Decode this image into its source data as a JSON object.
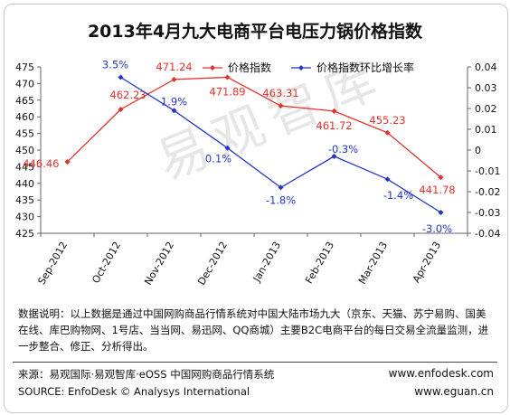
{
  "chart_data": {
    "type": "line",
    "title": "2013年4月九大电商平台电压力锅价格指数",
    "categories": [
      "Sep-2012",
      "Oct-2012",
      "Nov-2012",
      "Dec-2012",
      "Jan-2013",
      "Feb-2013",
      "Mar-2013",
      "Apr-2013"
    ],
    "y_left": {
      "ticks": [
        "425",
        "430",
        "435",
        "440",
        "445",
        "450",
        "455",
        "460",
        "465",
        "470",
        "475"
      ],
      "ylim": [
        425,
        475
      ]
    },
    "y_right": {
      "ticks": [
        "0.04",
        "0.03",
        "0.02",
        "0.01",
        "0",
        "-0.01",
        "-0.02",
        "-0.03",
        "-0.04"
      ],
      "ylim": [
        -0.04,
        0.04
      ]
    },
    "series": [
      {
        "name": "价格指数",
        "axis": "left",
        "color": "#e8302a",
        "values": [
          446.46,
          462.23,
          471.24,
          471.89,
          463.31,
          461.72,
          455.23,
          441.78
        ],
        "labels": [
          "446.46",
          "462.23",
          "471.24",
          "471.89",
          "463.31",
          "461.72",
          "455.23",
          "441.78"
        ]
      },
      {
        "name": "价格指数环比增长率",
        "axis": "right",
        "color": "#2535c8",
        "values": [
          null,
          0.035,
          0.019,
          0.001,
          -0.018,
          -0.003,
          -0.014,
          -0.03
        ],
        "labels": [
          null,
          "3.5%",
          "1.9%",
          "0.1%",
          "-1.8%",
          "-0.3%",
          "-1.4%",
          "-3.0%"
        ]
      }
    ],
    "legend": "top-right",
    "grid": false
  },
  "note": "数据说明：以上数据是通过中国网购商品行情系统对中国大陆市场九大（京东、天猫、苏宁易购、国美在线、库巴购物网、1号店、当当网、易迅网、QQ商城）主要B2C电商平台的每日交易全流量监测，进一步整合、修正、分析得出。",
  "source_cn": "来源：易观国际·易观智库·eOSS 中国网购商品行情系统",
  "source_en": "SOURCE: EnfoDesk © Analysys International",
  "url1": "www.enfodesk.com",
  "url2": "www.eguan.cn",
  "watermark": "易观智库"
}
